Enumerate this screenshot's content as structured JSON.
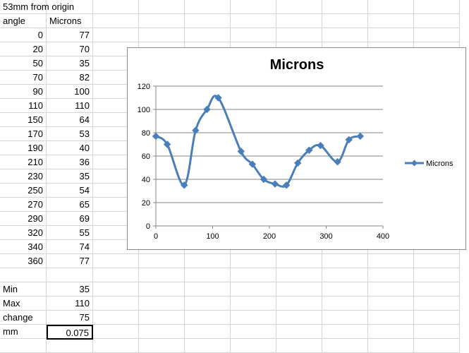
{
  "sheet": {
    "title_cell": "53mm from origin",
    "header_angle": "angle",
    "header_microns": "Microns",
    "rows": [
      {
        "angle": "0",
        "microns": "77"
      },
      {
        "angle": "20",
        "microns": "70"
      },
      {
        "angle": "50",
        "microns": "35"
      },
      {
        "angle": "70",
        "microns": "82"
      },
      {
        "angle": "90",
        "microns": "100"
      },
      {
        "angle": "110",
        "microns": "110"
      },
      {
        "angle": "150",
        "microns": "64"
      },
      {
        "angle": "170",
        "microns": "53"
      },
      {
        "angle": "190",
        "microns": "40"
      },
      {
        "angle": "210",
        "microns": "36"
      },
      {
        "angle": "230",
        "microns": "35"
      },
      {
        "angle": "250",
        "microns": "54"
      },
      {
        "angle": "270",
        "microns": "65"
      },
      {
        "angle": "290",
        "microns": "69"
      },
      {
        "angle": "320",
        "microns": "55"
      },
      {
        "angle": "340",
        "microns": "74"
      },
      {
        "angle": "360",
        "microns": "77"
      }
    ],
    "stats": [
      {
        "label": "Min",
        "value": "35"
      },
      {
        "label": "Max",
        "value": "110"
      },
      {
        "label": "change",
        "value": "75"
      },
      {
        "label": "mm",
        "value": "0.075"
      }
    ]
  },
  "chart_data": {
    "type": "line",
    "title": "Microns",
    "legend": "right",
    "x": [
      0,
      20,
      50,
      70,
      90,
      110,
      150,
      170,
      190,
      210,
      230,
      250,
      270,
      290,
      320,
      340,
      360
    ],
    "series": [
      {
        "name": "Microns",
        "values": [
          77,
          70,
          35,
          82,
          100,
          110,
          64,
          53,
          40,
          36,
          35,
          54,
          65,
          69,
          55,
          74,
          77
        ]
      }
    ],
    "xlim": [
      0,
      400
    ],
    "ylim": [
      0,
      120
    ],
    "x_ticks": [
      "0",
      "100",
      "200",
      "300",
      "400"
    ],
    "y_ticks": [
      "0",
      "20",
      "40",
      "60",
      "80",
      "100",
      "120"
    ],
    "grid": true,
    "color": "#4a7ebb",
    "smoothed": true
  }
}
